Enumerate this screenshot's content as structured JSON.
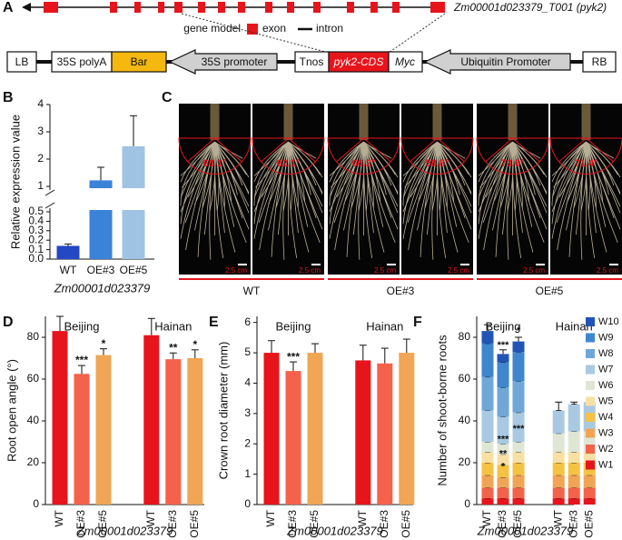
{
  "panel_a": {
    "label": "A",
    "transcript": "Zm00001d023379_T001 (pyk2)",
    "legend_title": "gene model",
    "exon": "exon",
    "intron": "intron",
    "construct": [
      "LB",
      "35S polyA",
      "Bar",
      "35S promoter",
      "Tnos",
      "pyk2-CDS",
      "Myc",
      "Ubiquitin Promoter",
      "RB"
    ]
  },
  "panel_c": {
    "label": "C",
    "angles": [
      "68.1°",
      "62.1°",
      "66.2°",
      "58.8°",
      "73.6°",
      "71.4°"
    ],
    "scale": "2.5 cm",
    "groups": [
      "WT",
      "OE#3",
      "OE#5"
    ]
  },
  "chart_data": [
    {
      "type": "broken-bar",
      "panel": "B",
      "ylabel": "Relative expression value",
      "xlabel": "Zm00001d023379",
      "categories": [
        "WT",
        "OE#3",
        "OE#5"
      ],
      "values": [
        0.14,
        1.22,
        2.47
      ],
      "errors": [
        0.02,
        0.48,
        1.12
      ],
      "colors": [
        "#2447c4",
        "#3b82d9",
        "#9fc3e2"
      ],
      "ylim": [
        0,
        4
      ],
      "axis_break": [
        0.5,
        1
      ],
      "yticks": [
        {
          "value": 0,
          "label": "0.0"
        },
        0.1,
        0.2,
        0.3,
        0.4,
        0.5,
        1,
        2,
        3,
        4
      ]
    },
    {
      "type": "bar",
      "panel": "D",
      "ylabel": "Root open angle (°)",
      "xlabel": "Zm00001d023379",
      "groups": [
        "Beijing",
        "Hainan"
      ],
      "categories": [
        "WT",
        "OE#3",
        "OE#5",
        "WT",
        "OE#3",
        "OE#5"
      ],
      "values": [
        83,
        62.5,
        71.5,
        81,
        69.5,
        70
      ],
      "errors": [
        7,
        4,
        3,
        8,
        3,
        4
      ],
      "colors": [
        "#e8141c",
        "#f5614b",
        "#f0a654",
        "#e8141c",
        "#f5614b",
        "#f0a654"
      ],
      "annotations": [
        {
          "index": 1,
          "text": "***"
        },
        {
          "index": 2,
          "text": "*"
        },
        {
          "index": 4,
          "text": "**"
        },
        {
          "index": 5,
          "text": "*"
        }
      ],
      "ylim": [
        0,
        90
      ],
      "yticks": [
        0,
        20,
        40,
        60,
        80
      ]
    },
    {
      "type": "bar",
      "panel": "E",
      "ylabel": "Crown root diameter (mm)",
      "xlabel": "Zm00001d023379",
      "groups": [
        "Beijing",
        "Hainan"
      ],
      "categories": [
        "WT",
        "OE#3",
        "OE#5",
        "WT",
        "OE#3",
        "OE#5"
      ],
      "values": [
        5.0,
        4.4,
        5.0,
        4.75,
        4.65,
        5.0
      ],
      "errors": [
        0.4,
        0.3,
        0.3,
        0.5,
        0.5,
        0.45
      ],
      "colors": [
        "#e8141c",
        "#f5614b",
        "#f0a654",
        "#e8141c",
        "#f5614b",
        "#f0a654"
      ],
      "annotations": [
        {
          "index": 1,
          "text": "***"
        }
      ],
      "ylim": [
        0,
        6.2
      ],
      "yticks": [
        0,
        1,
        2,
        3,
        4,
        5,
        6
      ]
    },
    {
      "type": "stacked-bar",
      "panel": "F",
      "ylabel": "Number of shoot-borne roots",
      "xlabel": "Zm00001d023379",
      "groups": [
        "Beijing",
        "Hainan"
      ],
      "categories": [
        "WT",
        "OE#3",
        "OE#5",
        "WT",
        "OE#3",
        "OE#5"
      ],
      "series": [
        {
          "name": "W1",
          "color": "#e8141c",
          "values": [
            3,
            3,
            3,
            3,
            3,
            3
          ]
        },
        {
          "name": "W2",
          "color": "#f2634a",
          "values": [
            5,
            5,
            5,
            5,
            5,
            5
          ]
        },
        {
          "name": "W3",
          "color": "#f2a455",
          "values": [
            6,
            5,
            6,
            6,
            6,
            6
          ]
        },
        {
          "name": "W4",
          "color": "#f6c244",
          "values": [
            6,
            6,
            6,
            6,
            6,
            6
          ]
        },
        {
          "name": "W5",
          "color": "#f7e0a4",
          "values": [
            5,
            5,
            5,
            5,
            5,
            5
          ]
        },
        {
          "name": "W6",
          "color": "#e0e6d4",
          "values": [
            5,
            5,
            5,
            9,
            10,
            10
          ]
        },
        {
          "name": "W7",
          "color": "#a9c9e2",
          "values": [
            15,
            13,
            14,
            11,
            13,
            14
          ]
        },
        {
          "name": "W8",
          "color": "#6fa7d9",
          "values": [
            16,
            14,
            15,
            0,
            0,
            0
          ]
        },
        {
          "name": "W9",
          "color": "#3f86cf",
          "values": [
            16,
            12,
            14,
            0,
            0,
            0
          ]
        },
        {
          "name": "W10",
          "color": "#2254b6",
          "values": [
            6,
            4,
            5,
            0,
            0,
            0
          ]
        }
      ],
      "errors": [
        3,
        2,
        2,
        4,
        1,
        1
      ],
      "annotations": [
        {
          "index": 1,
          "text": "***",
          "y": 76
        },
        {
          "index": 2,
          "text": "*",
          "y": 83
        },
        {
          "index": 1,
          "text": "***",
          "y": 31
        },
        {
          "index": 2,
          "text": "***",
          "y": 36
        },
        {
          "index": 1,
          "text": "**",
          "y": 24
        },
        {
          "index": 1,
          "text": "*",
          "y": 18
        }
      ],
      "ylim": [
        0,
        90
      ],
      "yticks": [
        0,
        20,
        40,
        60,
        80
      ]
    }
  ]
}
